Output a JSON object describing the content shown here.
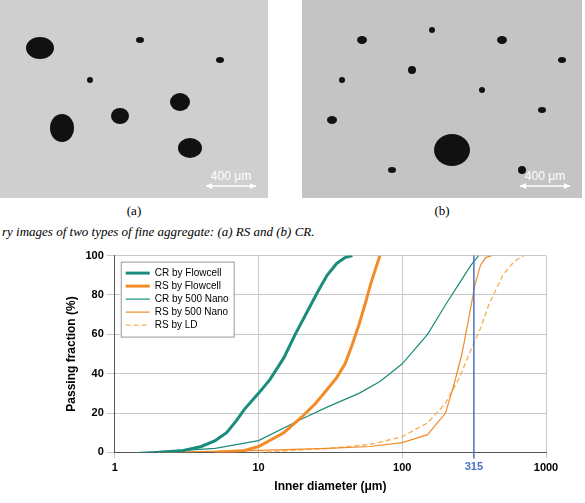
{
  "figure": {
    "panels": [
      {
        "label": "(a)",
        "scale_bar": "400 μm"
      },
      {
        "label": "(b)",
        "scale_bar": "400 μm"
      }
    ],
    "caption": "ry images of two types of fine aggregate: (a) RS and (b) CR."
  },
  "chart_data": {
    "type": "line",
    "x_label": "Inner diameter (μm)",
    "y_label": "Passing fraction (%)",
    "log": "x",
    "grid": true,
    "legend": "upper left",
    "xlim": [
      1,
      1000
    ],
    "xticks": [
      1,
      10,
      100,
      1000
    ],
    "ylim": [
      0,
      100
    ],
    "yticks": [
      0,
      20,
      40,
      60,
      80,
      100
    ],
    "vline": {
      "value": 315,
      "color": "#4a72c4"
    },
    "series": [
      {
        "name": "CR by Flowcell",
        "color": "#1b8c7c",
        "line_style": "thick",
        "x": [
          2,
          3,
          4,
          5,
          6,
          7,
          8,
          10,
          12,
          15,
          18,
          22,
          26,
          30,
          35,
          40,
          45
        ],
        "values": [
          0,
          1,
          3,
          6,
          10,
          16,
          22,
          30,
          37,
          48,
          60,
          72,
          82,
          90,
          96,
          99,
          100
        ]
      },
      {
        "name": "RS by Flowcell",
        "color": "#f28c28",
        "line_style": "thick",
        "x": [
          5,
          8,
          10,
          15,
          20,
          25,
          30,
          35,
          40,
          45,
          50,
          55,
          60,
          65,
          70
        ],
        "values": [
          0,
          1,
          3,
          10,
          18,
          25,
          32,
          38,
          45,
          55,
          65,
          75,
          85,
          93,
          100
        ]
      },
      {
        "name": "CR by 500 Nano",
        "color": "#1b8c7c",
        "line_style": "thin",
        "x": [
          1.5,
          3,
          5,
          10,
          20,
          30,
          50,
          70,
          100,
          150,
          200,
          250,
          300,
          340
        ],
        "values": [
          0,
          1,
          2,
          6,
          17,
          23,
          30,
          36,
          45,
          60,
          75,
          86,
          95,
          100
        ]
      },
      {
        "name": "RS by 500 Nano",
        "color": "#f28c28",
        "line_style": "thin",
        "x": [
          2,
          10,
          30,
          60,
          100,
          150,
          200,
          230,
          260,
          290,
          320,
          350,
          380,
          420
        ],
        "values": [
          0,
          1,
          2,
          3,
          5,
          9,
          20,
          35,
          50,
          68,
          85,
          95,
          99,
          100
        ]
      },
      {
        "name": "RS by LD",
        "color": "#f5b25e",
        "line_style": "dashed",
        "x": [
          10,
          30,
          60,
          100,
          150,
          200,
          250,
          300,
          350,
          400,
          500,
          600,
          700
        ],
        "values": [
          0,
          2,
          4,
          8,
          15,
          25,
          38,
          52,
          63,
          75,
          90,
          97,
          100
        ]
      }
    ]
  }
}
